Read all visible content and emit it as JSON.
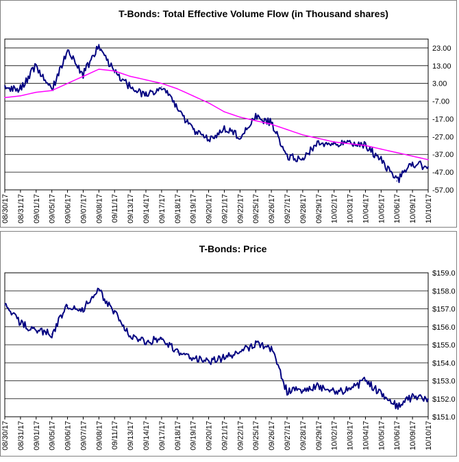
{
  "colors": {
    "volume_line": "#000080",
    "moving_average": "#ff00ff",
    "price_line": "#000080",
    "grid": "#000000",
    "background": "#ffffff"
  },
  "chart_data": [
    {
      "type": "line",
      "title": "T-Bonds: Total Effective Volume Flow (in Thousand shares)",
      "xlabel": "",
      "ylabel": "",
      "ylim": [
        -57,
        28
      ],
      "y_ticks": [
        "23.00",
        "13.00",
        "3.00",
        "-7.00",
        "-17.00",
        "-27.00",
        "-37.00",
        "-47.00",
        "-57.00"
      ],
      "y_tick_values": [
        23,
        13,
        3,
        -7,
        -17,
        -27,
        -37,
        -47,
        -57
      ],
      "categories": [
        "08/30/17",
        "08/31/17",
        "09/01/17",
        "09/05/17",
        "09/06/17",
        "09/07/17",
        "09/08/17",
        "09/11/17",
        "09/13/17",
        "09/14/17",
        "09/17/17",
        "09/18/17",
        "09/19/17",
        "09/20/17",
        "09/21/17",
        "09/22/17",
        "09/25/17",
        "09/26/17",
        "09/27/17",
        "09/28/17",
        "09/29/17",
        "10/02/17",
        "10/03/17",
        "10/04/17",
        "10/05/17",
        "10/06/17",
        "10/09/17",
        "10/10/17"
      ],
      "grid": true,
      "legend": "none",
      "series": [
        {
          "values": [
            1,
            0,
            13,
            -1,
            22,
            8,
            25,
            9,
            1,
            -4,
            1,
            -11,
            -23,
            -29,
            -22,
            -27,
            -16,
            -19,
            -38,
            -40,
            -30,
            -31,
            -31,
            -32,
            -40,
            -52,
            -42,
            -44
          ]
        },
        {
          "values": [
            -5,
            -4,
            -2,
            -1,
            3,
            7,
            11,
            10,
            7,
            5,
            3,
            0,
            -4,
            -8,
            -13,
            -16,
            -18,
            -20,
            -23,
            -26,
            -28,
            -30,
            -31,
            -32,
            -34,
            -36,
            -38,
            -40
          ]
        }
      ]
    },
    {
      "type": "line",
      "title": "T-Bonds: Price",
      "xlabel": "",
      "ylabel": "",
      "ylim": [
        151,
        159
      ],
      "y_ticks": [
        "$159.0",
        "$158.0",
        "$157.0",
        "$156.0",
        "$155.0",
        "$154.0",
        "$153.0",
        "$152.0",
        "$151.0"
      ],
      "y_tick_values": [
        159,
        158,
        157,
        156,
        155,
        154,
        153,
        152,
        151
      ],
      "categories": [
        "08/30/17",
        "08/31/17",
        "09/01/17",
        "09/05/17",
        "09/06/17",
        "09/07/17",
        "09/08/17",
        "09/11/17",
        "09/13/17",
        "09/14/17",
        "09/17/17",
        "09/18/17",
        "09/19/17",
        "09/20/17",
        "09/21/17",
        "09/22/17",
        "09/25/17",
        "09/26/17",
        "09/27/17",
        "09/28/17",
        "09/29/17",
        "10/02/17",
        "10/03/17",
        "10/04/17",
        "10/05/17",
        "10/06/17",
        "10/09/17",
        "10/10/17"
      ],
      "grid": true,
      "legend": "none",
      "series": [
        {
          "values": [
            157.2,
            156.2,
            155.8,
            155.6,
            157.2,
            157.0,
            158.0,
            156.8,
            155.5,
            155.1,
            155.4,
            154.6,
            154.3,
            154.0,
            154.3,
            154.6,
            155.1,
            154.8,
            152.4,
            152.5,
            152.7,
            152.4,
            152.5,
            153.0,
            152.3,
            151.6,
            152.1,
            152.0
          ]
        }
      ]
    }
  ]
}
